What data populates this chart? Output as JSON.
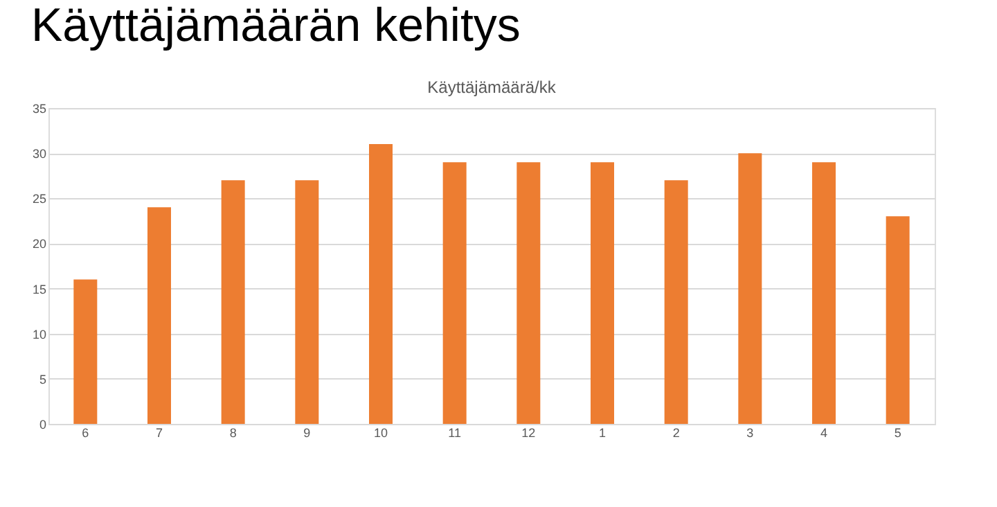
{
  "chart_data": {
    "type": "bar",
    "title": "Käyttäjämäärän kehitys",
    "subtitle": "Käyttäjämäärä/kk",
    "categories": [
      "6",
      "7",
      "8",
      "9",
      "10",
      "11",
      "12",
      "1",
      "2",
      "3",
      "4",
      "5"
    ],
    "values": [
      16,
      24,
      27,
      27,
      31,
      29,
      29,
      29,
      27,
      30,
      29,
      23
    ],
    "color": "#ed7d31",
    "ylim": [
      0,
      35
    ],
    "yticks": [
      0,
      5,
      10,
      15,
      20,
      25,
      30,
      35
    ],
    "grid": "y"
  }
}
